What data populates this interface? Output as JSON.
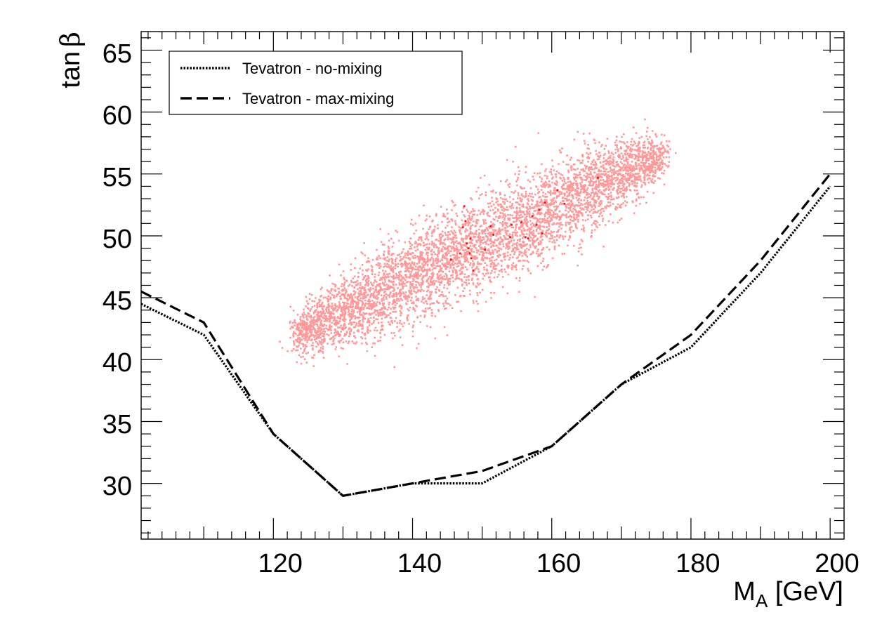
{
  "chart_data": {
    "type": "scatter",
    "xlabel": {
      "main": "M",
      "sub": "A",
      "unit": " [GeV]"
    },
    "ylabel": {
      "main": "tan",
      "symbol": "β"
    },
    "xlim": [
      101,
      202
    ],
    "ylim": [
      25.5,
      66.5
    ],
    "x_ticks": [
      120,
      140,
      160,
      180,
      200
    ],
    "x_tick_labels": [
      "120",
      "140",
      "160",
      "180",
      "200"
    ],
    "y_ticks": [
      30,
      35,
      40,
      45,
      50,
      55,
      60,
      65
    ],
    "y_tick_labels": [
      "30",
      "35",
      "40",
      "45",
      "50",
      "55",
      "60",
      "65"
    ],
    "grid": false,
    "legend_position": "top-left",
    "series": [
      {
        "name": "Tevatron - no-mixing",
        "style": "dotted",
        "color": "#000000",
        "x": [
          101,
          110,
          120,
          130,
          140,
          150,
          160,
          170,
          180,
          190,
          200
        ],
        "y": [
          44.5,
          42,
          34,
          29,
          30,
          30,
          33,
          38,
          41,
          47,
          54
        ]
      },
      {
        "name": "Tevatron - max-mixing",
        "style": "dashed",
        "color": "#000000",
        "x": [
          101,
          110,
          120,
          130,
          140,
          150,
          160,
          170,
          180,
          190,
          200
        ],
        "y": [
          45.5,
          43,
          34,
          29,
          30,
          31,
          33,
          38,
          42,
          48,
          55
        ]
      }
    ],
    "scatter_cloud": {
      "color": "#ff9999",
      "x_range": [
        117,
        180
      ],
      "y_range": [
        38,
        59.5
      ],
      "center_slope_tan_per_gev": 0.275,
      "center_at_x130": 44,
      "width_tan": 1.6
    },
    "highlight_points": {
      "color": "#ee1111",
      "points": [
        [
          145.5,
          48.1
        ],
        [
          146.8,
          48.6
        ],
        [
          147.2,
          50.7
        ],
        [
          147.6,
          51.2
        ],
        [
          147.8,
          49.4
        ],
        [
          148.0,
          49.0
        ],
        [
          148.2,
          48.6
        ],
        [
          148.4,
          48.2
        ],
        [
          148.7,
          47.2
        ],
        [
          148.3,
          49.8
        ],
        [
          150.4,
          48.9
        ],
        [
          151.2,
          50.8
        ],
        [
          151.6,
          50.1
        ],
        [
          154.0,
          49.9
        ],
        [
          154.2,
          50.9
        ],
        [
          155.6,
          51.1
        ],
        [
          156.2,
          49.9
        ],
        [
          156.6,
          49.8
        ],
        [
          157.2,
          51.6
        ],
        [
          157.8,
          50.9
        ],
        [
          158.2,
          52.1
        ],
        [
          158.6,
          50.2
        ],
        [
          159.0,
          52.7
        ],
        [
          160.8,
          53.7
        ],
        [
          161.8,
          52.6
        ],
        [
          166.6,
          54.7
        ],
        [
          147.4,
          52.4
        ]
      ]
    }
  }
}
